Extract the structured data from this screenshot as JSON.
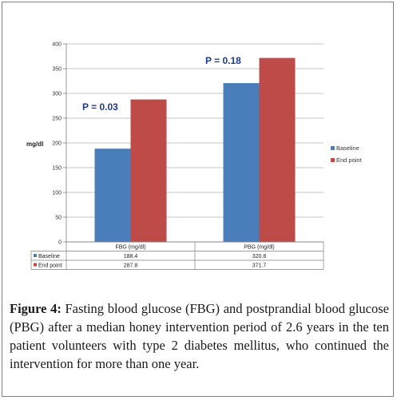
{
  "chart_data": {
    "type": "bar",
    "ylabel": "mg/dl",
    "ylim": [
      0,
      400
    ],
    "yticks": [
      "0",
      "50",
      "100",
      "150",
      "200",
      "250",
      "300",
      "350",
      "400"
    ],
    "categories": [
      "FBG (mg/dl)",
      "PBG (mg/dl)"
    ],
    "series": [
      {
        "name": "Baseline",
        "values": [
          188.4,
          320.8
        ],
        "labels": [
          "188.4",
          "320.8"
        ],
        "color": "#4a7ebb"
      },
      {
        "name": "End point",
        "values": [
          287.8,
          371.7
        ],
        "labels": [
          "287.8",
          "371.7"
        ],
        "color": "#be4b48"
      }
    ],
    "annotations": [
      "P = 0.03",
      "P = 0.18"
    ],
    "grid": true,
    "legend": "right",
    "data_table": true
  },
  "caption": {
    "label": "Figure 4:",
    "text": "Fasting blood glucose (FBG) and postprandial blood glucose (PBG) after a median honey intervention period of 2.6 years in the ten patient volunteers with type 2 diabetes mellitus, who continued the intervention for more than one year."
  }
}
